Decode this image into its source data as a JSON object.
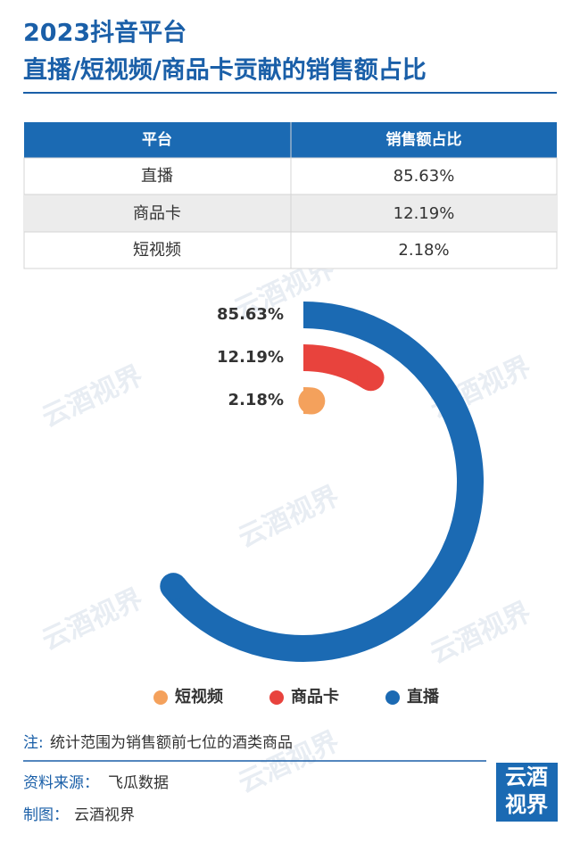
{
  "header": {
    "title_line1": "2023抖音平台",
    "title_line2": "直播/短视频/商品卡贡献的销售额占比"
  },
  "table": {
    "columns": [
      "平台",
      "销售额占比"
    ],
    "rows": [
      [
        "直播",
        "85.63%"
      ],
      [
        "商品卡",
        "12.19%"
      ],
      [
        "短视频",
        "2.18%"
      ]
    ]
  },
  "chart_data": {
    "type": "radial-bar",
    "categories": [
      "直播",
      "商品卡",
      "短视频"
    ],
    "values": [
      85.63,
      12.19,
      2.18
    ],
    "value_labels": [
      "85.63%",
      "12.19%",
      "2.18%"
    ],
    "colors": [
      "#1b6ab3",
      "#e8433d",
      "#f4a15c"
    ],
    "ylim": [
      0,
      100
    ]
  },
  "note": {
    "label": "注:",
    "text": "统计范围为销售额前七位的酒类商品"
  },
  "source": {
    "label": "资料来源：",
    "text": "飞瓜数据"
  },
  "credit": {
    "label": "制图：",
    "text": "云酒视界"
  },
  "logo": {
    "line1": "云酒",
    "line2": "视界"
  },
  "watermark": "云酒视界"
}
